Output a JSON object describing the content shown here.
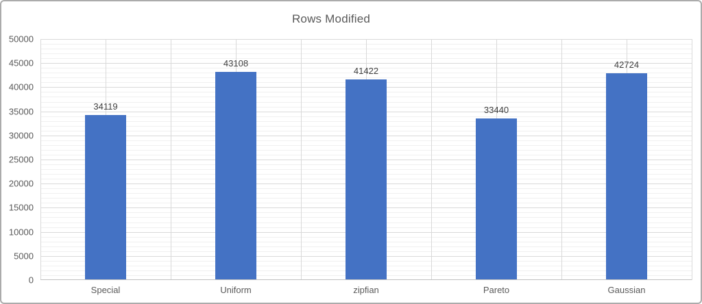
{
  "chart_data": {
    "type": "bar",
    "title": "Rows Modified",
    "categories": [
      "Special",
      "Uniform",
      "zipfian",
      "Pareto",
      "Gaussian"
    ],
    "values": [
      34119,
      43108,
      41422,
      33440,
      42724
    ],
    "data_labels": [
      "34119",
      "43108",
      "41422",
      "33440",
      "42724"
    ],
    "xlabel": "",
    "ylabel": "",
    "ylim": [
      0,
      50000
    ],
    "y_major_step": 5000,
    "y_minor_step": 1000,
    "y_tick_labels": [
      "0",
      "5000",
      "10000",
      "15000",
      "20000",
      "25000",
      "30000",
      "35000",
      "40000",
      "45000",
      "50000"
    ],
    "grid": "horizontal major+minor, vertical category boundaries and midpoints",
    "legend_position": "none"
  },
  "colors": {
    "bar_fill": "#4472c4",
    "major_gridline": "#d9d9d9",
    "minor_gridline": "#f0f0f0",
    "vertical_gridline": "#d9d9d9",
    "axis_line": "#bfbfbf",
    "axis_text": "#595959",
    "data_label_text": "#404040",
    "title_text": "#595959",
    "chart_border": "#ababab",
    "background": "#ffffff"
  }
}
